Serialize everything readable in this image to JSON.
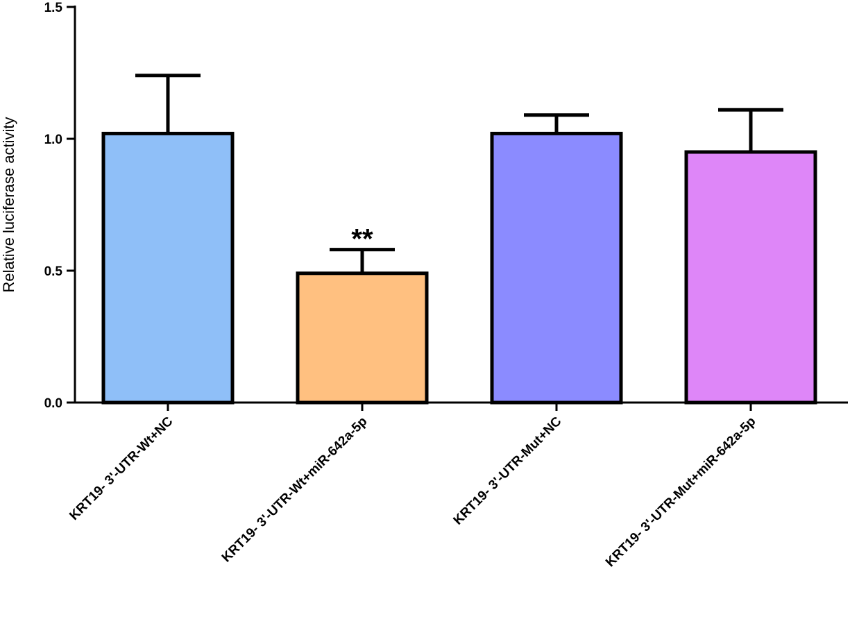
{
  "chart_data": {
    "type": "bar",
    "title": "",
    "xlabel": "",
    "ylabel": "Relative luciferase activity",
    "ylim": [
      0,
      1.5
    ],
    "yticks": [
      "0.0",
      "0.5",
      "1.0",
      "1.5"
    ],
    "categories": [
      "KRT19- 3'-UTR-Wt+NC",
      "KRT19- 3'-UTR-Wt+miR-642a-5p",
      "KRT19- 3'-UTR-Mut+NC",
      "KRT19- 3'-UTR-Mut+miR-642a-5p"
    ],
    "values": [
      1.02,
      0.49,
      1.02,
      0.95
    ],
    "errors": [
      0.22,
      0.09,
      0.07,
      0.16
    ],
    "annotations": [
      "",
      "**",
      "",
      ""
    ],
    "colors": [
      "#8FBFF8",
      "#FFC080",
      "#8B8BFF",
      "#DE86F8"
    ],
    "grid": false,
    "legend": "none"
  }
}
